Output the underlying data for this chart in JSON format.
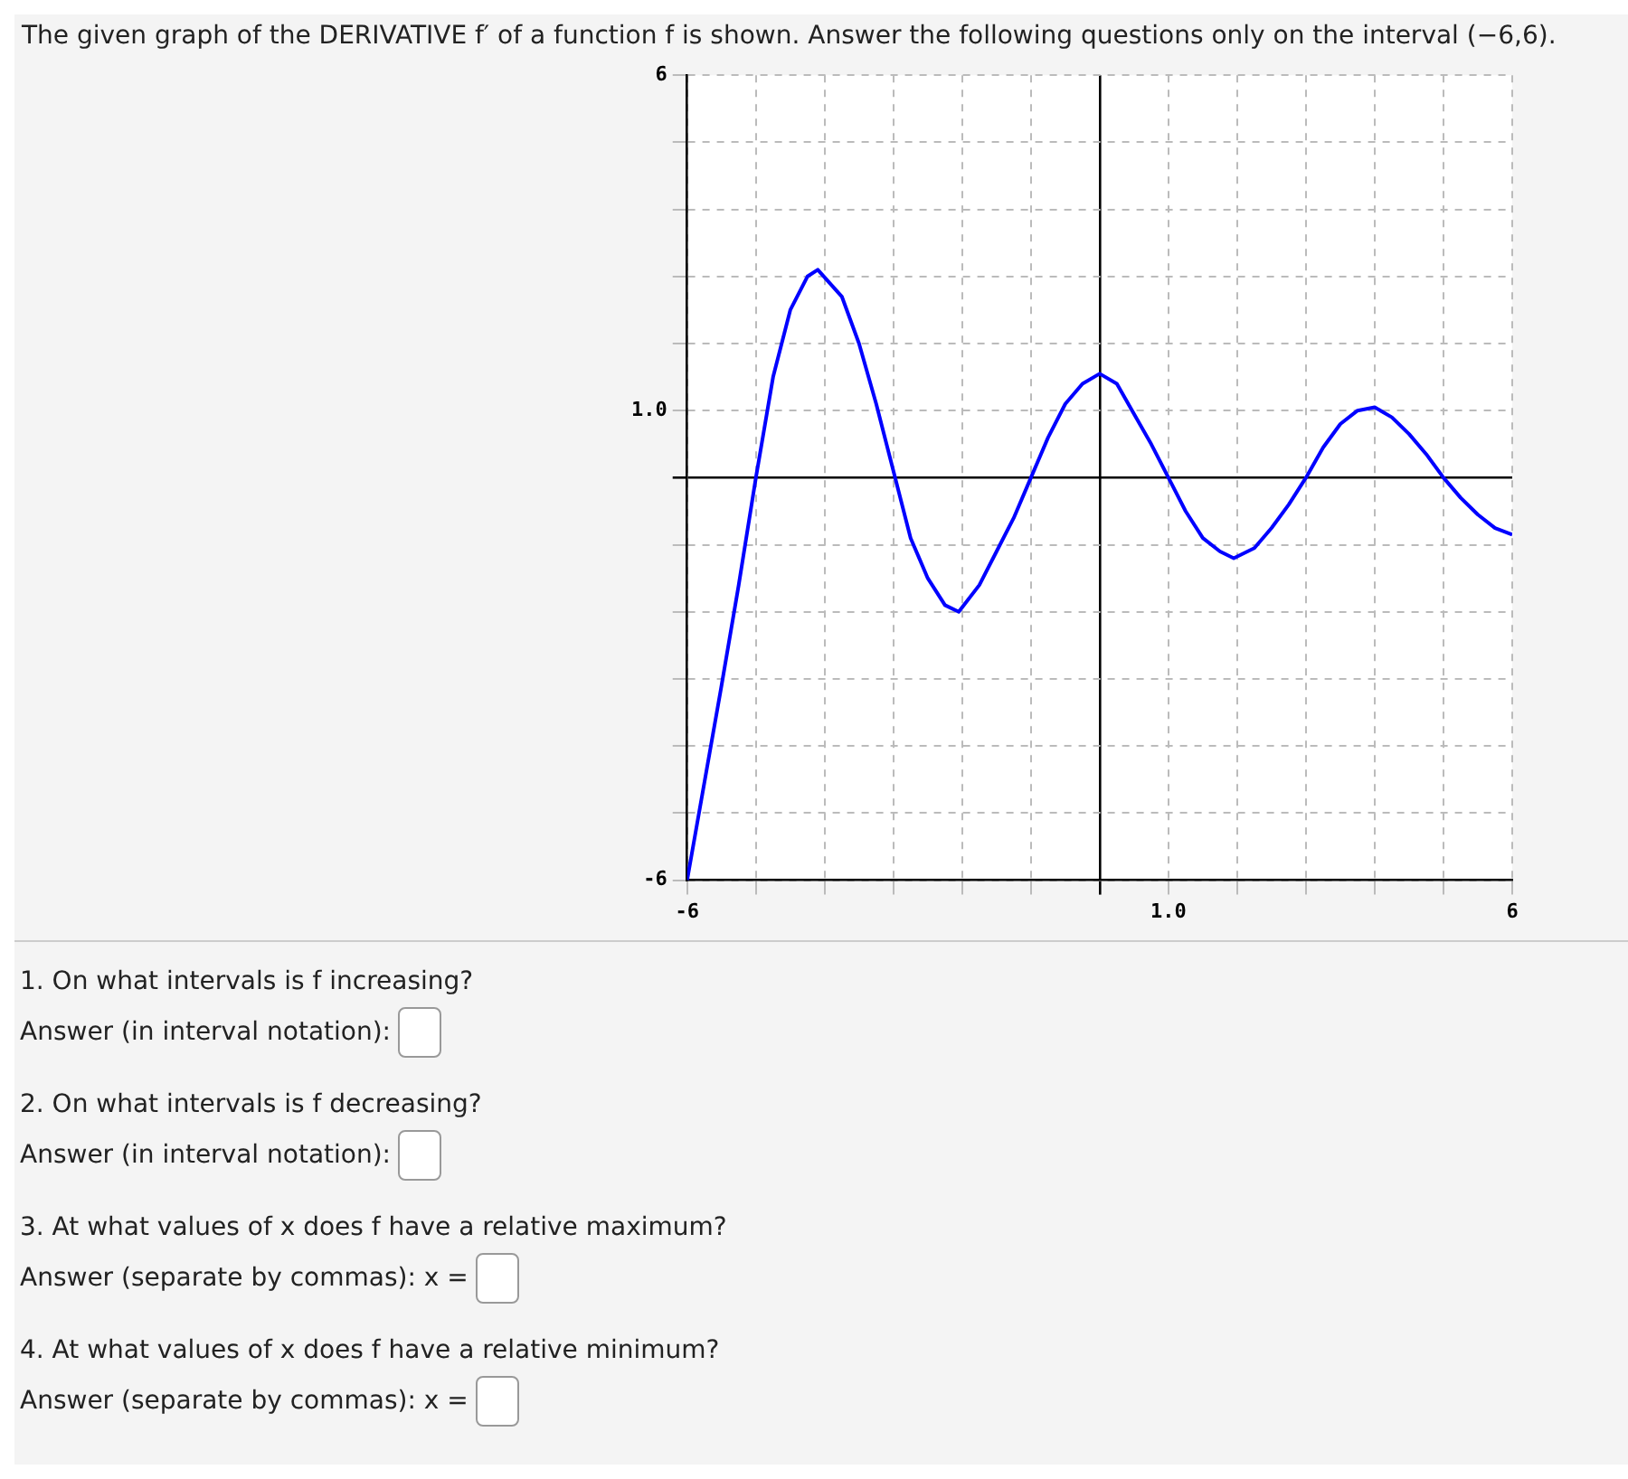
{
  "chart_data": {
    "type": "line",
    "title": "The given graph of the DERIVATIVE f′ of a function f is shown. Answer the following questions only on the interval (−6,6).",
    "x": [
      -6,
      -5.5,
      -5.25,
      -5,
      -4.75,
      -4.5,
      -4.25,
      -4.1,
      -3.75,
      -3.5,
      -3.25,
      -3,
      -2.75,
      -2.5,
      -2.25,
      -2.05,
      -1.75,
      -1.5,
      -1.25,
      -1,
      -0.75,
      -0.5,
      -0.25,
      0,
      0.25,
      0.5,
      0.75,
      1,
      1.25,
      1.5,
      1.75,
      1.95,
      2.25,
      2.5,
      2.75,
      3,
      3.25,
      3.5,
      3.75,
      4,
      4.25,
      4.5,
      4.75,
      5,
      5.25,
      5.5,
      5.75,
      6
    ],
    "series": [
      {
        "color": "#0000ff",
        "values": [
          -6,
          -3.1,
          -1.6,
          0,
          1.5,
          2.5,
          3,
          3.1,
          2.7,
          2,
          1.1,
          0.1,
          -0.9,
          -1.5,
          -1.9,
          -2,
          -1.6,
          -1.1,
          -0.6,
          0,
          0.6,
          1.1,
          1.4,
          1.55,
          1.4,
          0.95,
          0.5,
          0,
          -0.5,
          -0.9,
          -1.1,
          -1.2,
          -1.05,
          -0.75,
          -0.4,
          0,
          0.45,
          0.8,
          1,
          1.05,
          0.9,
          0.65,
          0.35,
          0,
          -0.3,
          -0.55,
          -0.75,
          -0.85
        ]
      }
    ],
    "xlim": [
      -6,
      6
    ],
    "ylim": [
      -6,
      6
    ],
    "xticks": [
      {
        "value": -6,
        "label": "-6"
      },
      {
        "value": -5,
        "label": null
      },
      {
        "value": -4,
        "label": null
      },
      {
        "value": -3,
        "label": null
      },
      {
        "value": -2,
        "label": null
      },
      {
        "value": -1,
        "label": null
      },
      {
        "value": 0,
        "label": null
      },
      {
        "value": 1,
        "label": "1.0"
      },
      {
        "value": 2,
        "label": null
      },
      {
        "value": 3,
        "label": null
      },
      {
        "value": 4,
        "label": null
      },
      {
        "value": 5,
        "label": null
      },
      {
        "value": 6,
        "label": "6"
      }
    ],
    "yticks": [
      {
        "value": -6,
        "label": "-6"
      },
      {
        "value": -5,
        "label": null
      },
      {
        "value": -4,
        "label": null
      },
      {
        "value": -3,
        "label": null
      },
      {
        "value": -2,
        "label": null
      },
      {
        "value": -1,
        "label": null
      },
      {
        "value": 0,
        "label": null
      },
      {
        "value": 1,
        "label": "1.0"
      },
      {
        "value": 2,
        "label": null
      },
      {
        "value": 3,
        "label": null
      },
      {
        "value": 4,
        "label": null
      },
      {
        "value": 5,
        "label": null
      },
      {
        "value": 6,
        "label": "6"
      }
    ],
    "grid": true,
    "legend": false,
    "marker": "none",
    "line_style": "solid",
    "annotations": [
      "1. On what intervals is f increasing?",
      "Answer (in interval notation):",
      "2. On what intervals is f decreasing?",
      "Answer (in interval notation):",
      "3. At what values of x does f have a relative maximum?",
      "Answer (separate by commas): x =",
      "4. At what values of x does f have a relative minimum?",
      "Answer (separate by commas): x ="
    ]
  }
}
